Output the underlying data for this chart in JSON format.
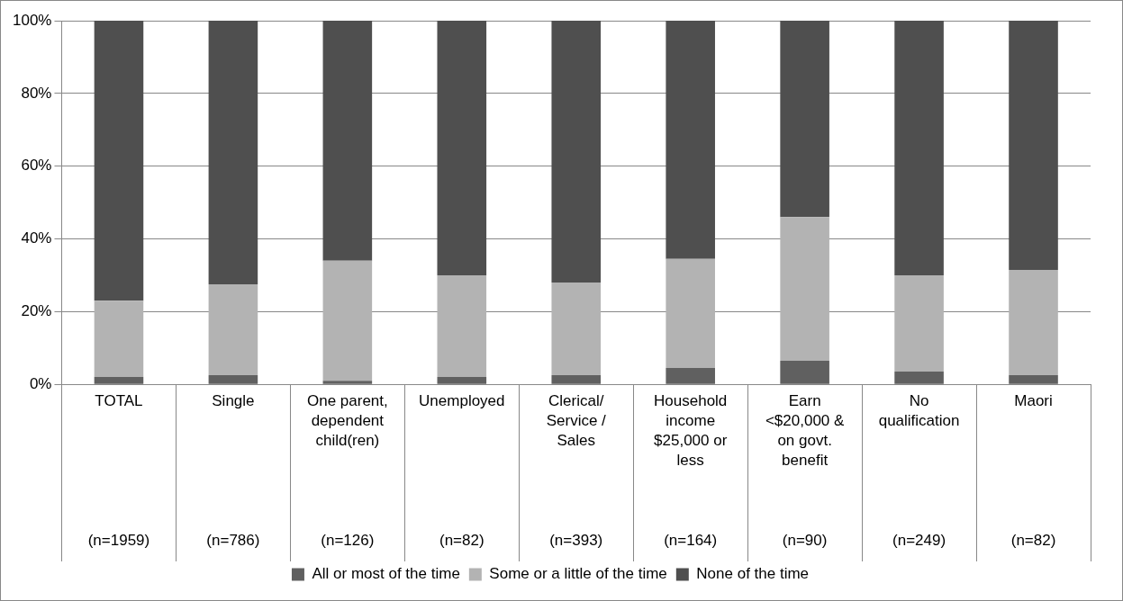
{
  "chart_data": {
    "type": "bar",
    "stacked": true,
    "categories": [
      "TOTAL\n(n=1959)",
      "Single\n(n=786)",
      "One parent,\ndependent\nchild(ren)\n(n=126)",
      "Unemployed\n(n=82)",
      "Clerical/\nService /\nSales\n(n=393)",
      "Household\nincome\n$25,000 or\nless\n(n=164)",
      "Earn\n<$20,000 &\non govt.\nbenefit\n(n=90)",
      "No\nqualification\n(n=249)",
      "Maori\n(n=82)"
    ],
    "series": [
      {
        "name": "All or most of the time",
        "color": "#606060",
        "values": [
          2,
          2.5,
          1,
          2,
          2.5,
          4.5,
          6.5,
          3.5,
          2.5
        ]
      },
      {
        "name": "Some or a little of the time",
        "color": "#b3b3b3",
        "values": [
          21,
          25,
          33,
          28,
          25.5,
          30,
          39.5,
          26.5,
          29
        ]
      },
      {
        "name": "None of the time",
        "color": "#4f4f4f",
        "values": [
          77,
          72.5,
          66,
          70,
          72,
          65.5,
          54,
          70,
          68.5
        ]
      }
    ],
    "ylim": [
      0,
      100
    ],
    "yticks": [
      {
        "value": 0,
        "label": "0%"
      },
      {
        "value": 20,
        "label": "20%"
      },
      {
        "value": 40,
        "label": "40%"
      },
      {
        "value": 60,
        "label": "60%"
      },
      {
        "value": 80,
        "label": "80%"
      },
      {
        "value": 100,
        "label": "100%"
      }
    ],
    "grid": "y",
    "legend": "bottom"
  }
}
